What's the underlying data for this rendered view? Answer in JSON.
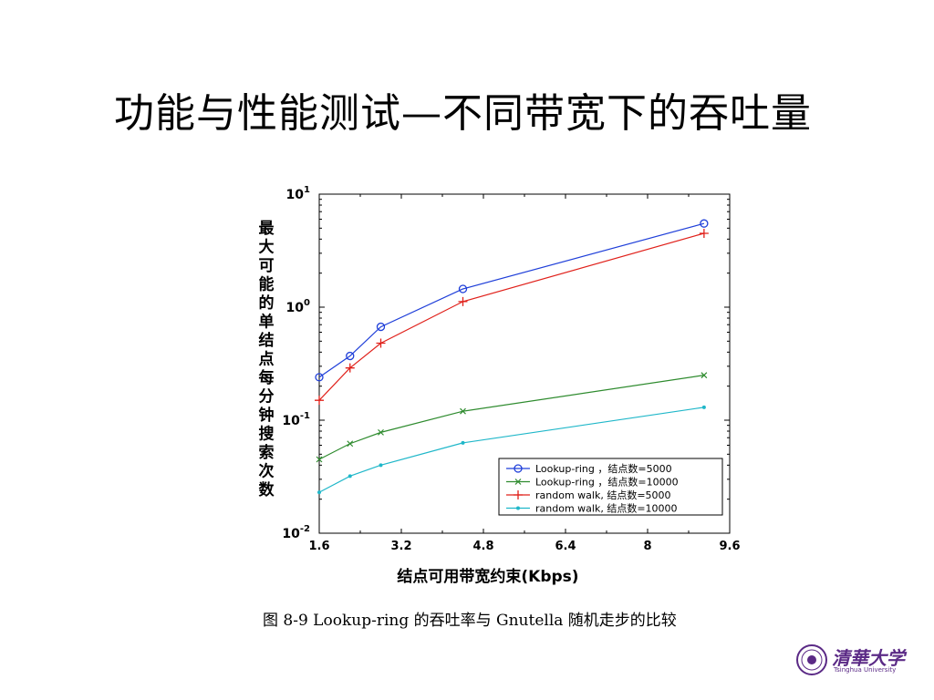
{
  "slide": {
    "title": "功能与性能测试—不同带宽下的吞吐量",
    "caption": "图 8-9 Lookup-ring 的吞吐率与 Gnutella 随机走步的比较",
    "logo_text": "清華大学",
    "logo_sub": "Tsinghua University"
  },
  "chart_data": {
    "type": "line",
    "xlabel": "结点可用带宽约束(Kbps)",
    "ylabel": "最大可能的单结点每分钟搜索次数",
    "xlim": [
      1.6,
      9.6
    ],
    "x_ticks": [
      "1.6",
      "3.2",
      "4.8",
      "6.4",
      "8",
      "9.6"
    ],
    "y_scale": "log",
    "ylim": [
      0.01,
      10
    ],
    "y_ticks": [
      {
        "base": "10",
        "exp": "-2"
      },
      {
        "base": "10",
        "exp": "-1"
      },
      {
        "base": "10",
        "exp": "0"
      },
      {
        "base": "10",
        "exp": "1"
      }
    ],
    "grid": false,
    "legend_position": "bottom-right",
    "series": [
      {
        "name": "Lookup-ring ，结点数=5000",
        "color": "#1f3fd9",
        "marker": "circle",
        "x": [
          1.6,
          2.2,
          2.8,
          4.4,
          9.1
        ],
        "y": [
          0.24,
          0.37,
          0.67,
          1.45,
          5.5
        ]
      },
      {
        "name": "Lookup-ring ，结点数=10000",
        "color": "#2e8b2e",
        "marker": "x",
        "x": [
          1.6,
          2.2,
          2.8,
          4.4,
          9.1
        ],
        "y": [
          0.045,
          0.062,
          0.078,
          0.12,
          0.25
        ]
      },
      {
        "name": "random walk, 结点数=5000",
        "color": "#e0201a",
        "marker": "plus",
        "x": [
          1.6,
          2.2,
          2.8,
          4.4,
          9.1
        ],
        "y": [
          0.15,
          0.29,
          0.48,
          1.12,
          4.5
        ]
      },
      {
        "name": "random walk, 结点数=10000",
        "color": "#1fb7c9",
        "marker": "dot",
        "x": [
          1.6,
          2.2,
          2.8,
          4.4,
          9.1
        ],
        "y": [
          0.023,
          0.032,
          0.04,
          0.063,
          0.13
        ]
      }
    ]
  }
}
